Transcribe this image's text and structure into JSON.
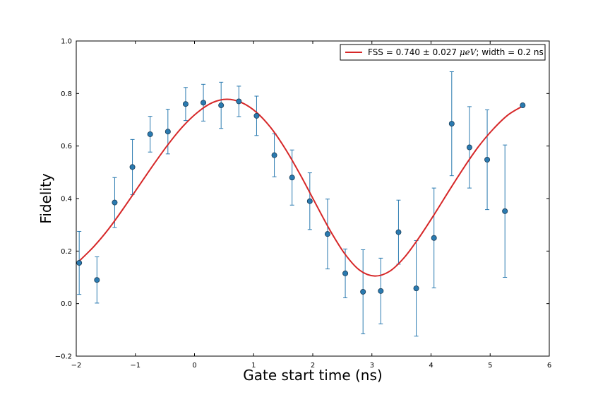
{
  "chart_data": {
    "type": "scatter",
    "xlabel": "Gate start time (ns)",
    "ylabel": "Fidelity",
    "xlim": [
      -2,
      6
    ],
    "ylim": [
      -0.2,
      1.0
    ],
    "xticks": [
      -2,
      -1,
      0,
      1,
      2,
      3,
      4,
      5,
      6
    ],
    "yticks": [
      -0.2,
      0.0,
      0.2,
      0.4,
      0.6,
      0.8,
      1.0
    ],
    "xtick_labels": [
      "−2",
      "−1",
      "0",
      "1",
      "2",
      "3",
      "4",
      "5",
      "6"
    ],
    "ytick_labels": [
      "−0.2",
      "0.0",
      "0.2",
      "0.4",
      "0.6",
      "0.8",
      "1.0"
    ],
    "grid": false,
    "legend": {
      "placement": "top-right",
      "entries": [
        {
          "pre": "FSS = 0.740 ",
          "pm": "±",
          "mid": " 0.027 ",
          "math": "μeV",
          "post": "; width = 0.2 ns"
        }
      ]
    },
    "series": [
      {
        "kind": "points",
        "color": "#2a7ab0",
        "x": [
          -1.95,
          -1.65,
          -1.35,
          -1.05,
          -0.75,
          -0.45,
          -0.15,
          0.15,
          0.45,
          0.75,
          1.05,
          1.35,
          1.65,
          1.95,
          2.25,
          2.55,
          2.85,
          3.15,
          3.45,
          3.75,
          4.05,
          4.35,
          4.65,
          4.95,
          5.25,
          5.55
        ],
        "y": [
          0.155,
          0.09,
          0.385,
          0.52,
          0.645,
          0.655,
          0.76,
          0.765,
          0.755,
          0.77,
          0.715,
          0.565,
          0.48,
          0.39,
          0.265,
          0.115,
          0.045,
          0.048,
          0.272,
          0.058,
          0.25,
          0.685,
          0.595,
          0.548,
          0.352,
          0.755
        ],
        "yerr": [
          0.12,
          0.088,
          0.095,
          0.105,
          0.068,
          0.085,
          0.063,
          0.07,
          0.088,
          0.058,
          0.075,
          0.082,
          0.105,
          0.108,
          0.133,
          0.093,
          0.16,
          0.125,
          0.122,
          0.182,
          0.19,
          0.198,
          0.155,
          0.19,
          0.252,
          0.0
        ]
      },
      {
        "kind": "fit",
        "color": "#d62728",
        "x": [
          -1.95,
          -1.7,
          -1.45,
          -1.2,
          -0.95,
          -0.7,
          -0.45,
          -0.2,
          0.05,
          0.3,
          0.55,
          0.8,
          1.05,
          1.3,
          1.55,
          1.8,
          2.05,
          2.3,
          2.55,
          2.8,
          3.05,
          3.3,
          3.55,
          3.8,
          4.05,
          4.3,
          4.55,
          4.8,
          5.05,
          5.3,
          5.55
        ],
        "y": [
          0.162,
          0.218,
          0.285,
          0.363,
          0.445,
          0.527,
          0.605,
          0.674,
          0.728,
          0.765,
          0.778,
          0.765,
          0.728,
          0.667,
          0.584,
          0.486,
          0.38,
          0.276,
          0.187,
          0.126,
          0.105,
          0.123,
          0.176,
          0.252,
          0.338,
          0.428,
          0.516,
          0.597,
          0.664,
          0.718,
          0.752
        ]
      }
    ]
  }
}
